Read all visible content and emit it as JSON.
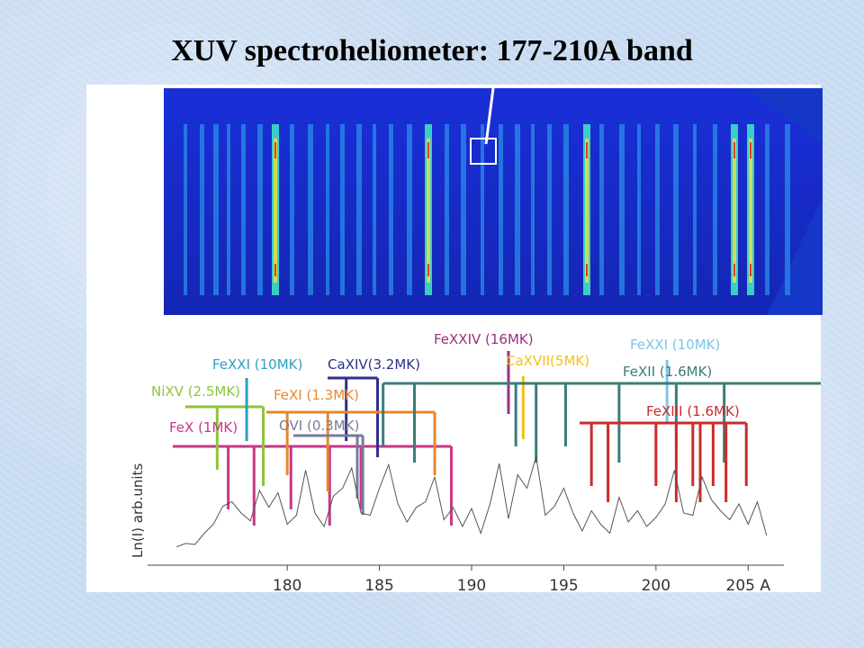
{
  "title": "XUV spectroheliometer: 177-210A band",
  "chart_data": {
    "type": "line",
    "title": "XUV spectroheliometer: 177-210A band",
    "xlabel": "",
    "ylabel": "Ln(I) arb.units",
    "xlim": [
      173.5,
      206.5
    ],
    "xticks": [
      180,
      185,
      190,
      195,
      200,
      205
    ],
    "xtick_labels": [
      "180",
      "185",
      "190",
      "195",
      "200",
      "205 A"
    ],
    "x": [
      174.0,
      174.5,
      175.0,
      175.5,
      176.0,
      176.5,
      177.0,
      177.5,
      178.0,
      178.5,
      179.0,
      179.5,
      180.0,
      180.5,
      181.0,
      181.5,
      182.0,
      182.5,
      183.0,
      183.5,
      184.0,
      184.5,
      185.0,
      185.5,
      186.0,
      186.5,
      187.0,
      187.5,
      188.0,
      188.5,
      189.0,
      189.5,
      190.0,
      190.5,
      191.0,
      191.5,
      192.0,
      192.5,
      193.0,
      193.5,
      194.0,
      194.5,
      195.0,
      195.5,
      196.0,
      196.5,
      197.0,
      197.5,
      198.0,
      198.5,
      199.0,
      199.5,
      200.0,
      200.5,
      201.0,
      201.5,
      202.0,
      202.5,
      203.0,
      203.5,
      204.0,
      204.5,
      205.0,
      205.5,
      206.0
    ],
    "y": [
      0.1,
      0.13,
      0.12,
      0.22,
      0.3,
      0.46,
      0.5,
      0.4,
      0.33,
      0.6,
      0.45,
      0.58,
      0.3,
      0.38,
      0.78,
      0.4,
      0.28,
      0.55,
      0.62,
      0.8,
      0.4,
      0.38,
      0.62,
      0.83,
      0.48,
      0.32,
      0.45,
      0.5,
      0.72,
      0.34,
      0.45,
      0.28,
      0.44,
      0.22,
      0.48,
      0.84,
      0.35,
      0.74,
      0.62,
      0.9,
      0.38,
      0.46,
      0.62,
      0.4,
      0.24,
      0.42,
      0.3,
      0.22,
      0.54,
      0.32,
      0.42,
      0.28,
      0.36,
      0.48,
      0.78,
      0.4,
      0.38,
      0.72,
      0.52,
      0.42,
      0.34,
      0.48,
      0.3,
      0.5,
      0.2
    ],
    "ion_groups": [
      {
        "label": "FeX (1MK)",
        "color": "#c8368a",
        "lines": [
          176.8,
          178.2,
          180.2,
          182.3,
          184.0,
          188.9
        ]
      },
      {
        "label": "NiXV (2.5MK)",
        "color": "#8dc43a",
        "lines": [
          176.2,
          178.7
        ]
      },
      {
        "label": "FeXXI (10MK)",
        "color": "#2b9fc2",
        "lines": [
          177.8
        ]
      },
      {
        "label": "CaXIV(3.2MK)",
        "color": "#2e2f8c",
        "lines": [
          183.2,
          184.9
        ]
      },
      {
        "label": "FeXI (1.3MK)",
        "color": "#e8872e",
        "lines": [
          180.0,
          182.2,
          188.0
        ]
      },
      {
        "label": "OVI (0.3MK)",
        "color": "#7a7a9a",
        "lines": [
          183.8,
          184.1
        ]
      },
      {
        "label": "FeXXIV (16MK)",
        "color": "#9c2f82",
        "lines": [
          192.0
        ]
      },
      {
        "label": "CaXVII(5MK)",
        "color": "#f2c118",
        "lines": [
          192.8
        ]
      },
      {
        "label": "FeXXI (10MK)",
        "color": "#7ec4e8",
        "lines": [
          200.6
        ]
      },
      {
        "label": "FeXII (1.6MK)",
        "color": "#3b7d78",
        "lines": [
          185.2,
          186.9,
          192.4,
          193.5,
          195.1,
          198.0,
          201.1,
          203.7
        ]
      },
      {
        "label": "FeXIII (1.6MK)",
        "color": "#cc2a2a",
        "lines": [
          196.5,
          197.4,
          200.0,
          201.1,
          202.0,
          202.4,
          203.1,
          203.8,
          204.9
        ]
      }
    ]
  }
}
